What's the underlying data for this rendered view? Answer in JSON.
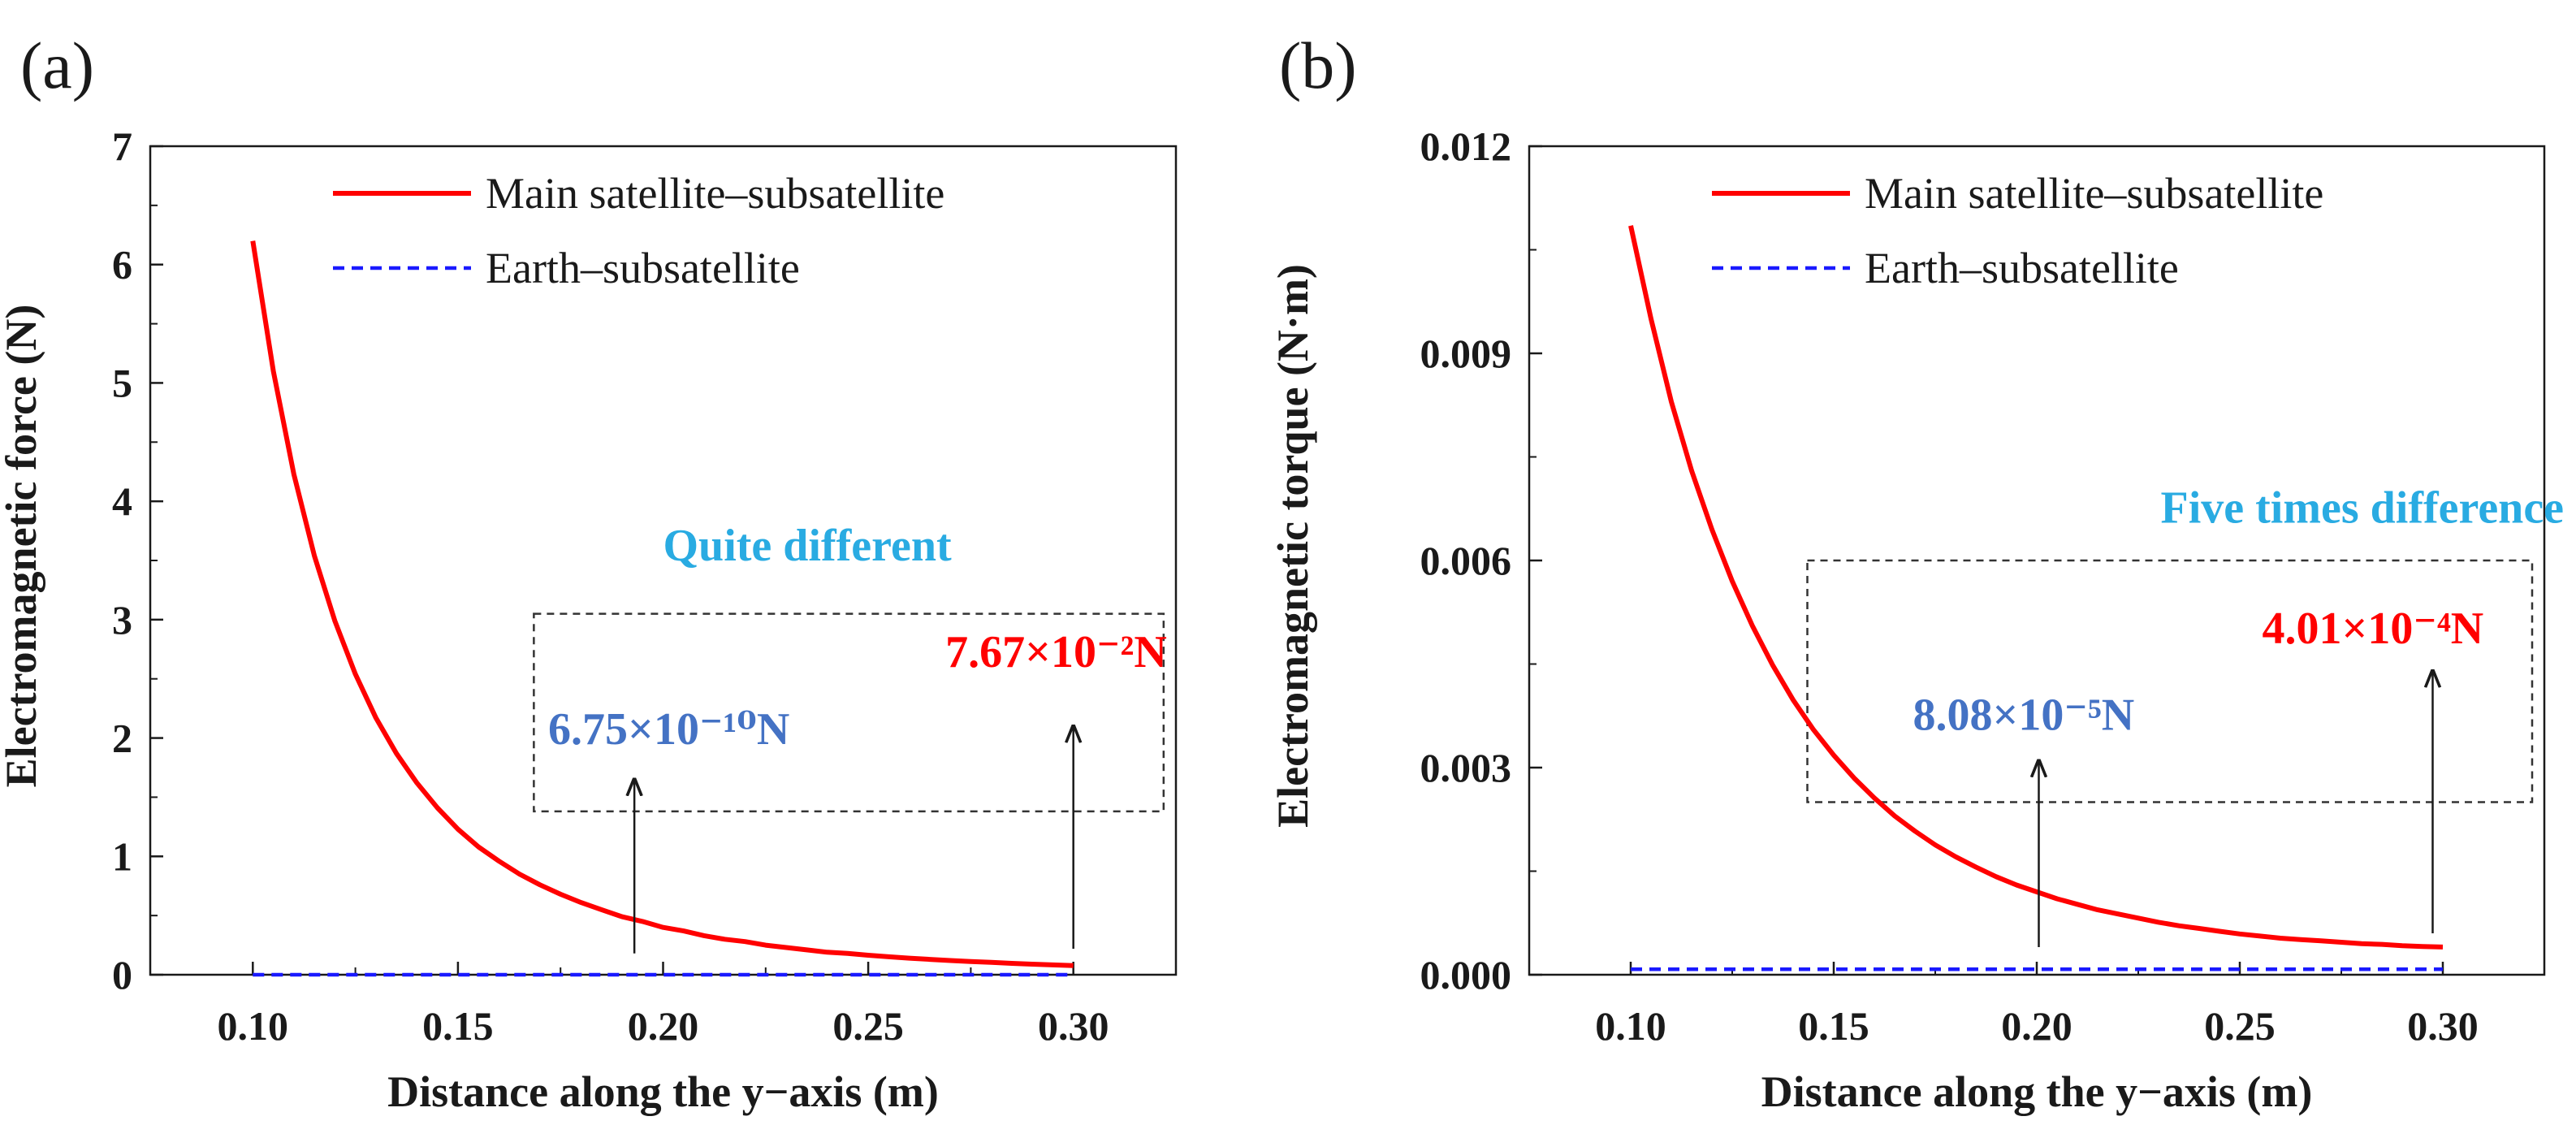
{
  "colors": {
    "main_line": "#ff0000",
    "earth_line": "#1a1aff",
    "anno_blue": "#4472c4",
    "anno_red": "#ff0000",
    "anno_title": "#29abe2",
    "axis": "#1a1a1a"
  },
  "chart_data": [
    {
      "type": "line",
      "panel_label": "(a)",
      "title": "",
      "xlabel": "Distance along the y−axis (m)",
      "ylabel": "Electromagnetic force (N)",
      "xlim": [
        0.075,
        0.325
      ],
      "ylim": [
        0,
        7
      ],
      "xticks": [
        0.1,
        0.15,
        0.2,
        0.25,
        0.3
      ],
      "xtick_labels": [
        "0.10",
        "0.15",
        "0.20",
        "0.25",
        "0.30"
      ],
      "yticks": [
        0,
        1,
        2,
        3,
        4,
        5,
        6,
        7
      ],
      "ytick_labels": [
        "0",
        "1",
        "2",
        "3",
        "4",
        "5",
        "6",
        "7"
      ],
      "grid": false,
      "legend_position": "top-right",
      "series": [
        {
          "name": "Main satellite–subsatellite",
          "style": "solid",
          "color": "#ff0000",
          "x": [
            0.1,
            0.105,
            0.11,
            0.115,
            0.12,
            0.125,
            0.13,
            0.135,
            0.14,
            0.145,
            0.15,
            0.155,
            0.16,
            0.165,
            0.17,
            0.175,
            0.18,
            0.185,
            0.19,
            0.195,
            0.2,
            0.205,
            0.21,
            0.215,
            0.22,
            0.225,
            0.23,
            0.235,
            0.24,
            0.245,
            0.25,
            0.255,
            0.26,
            0.265,
            0.27,
            0.275,
            0.28,
            0.285,
            0.29,
            0.295,
            0.3
          ],
          "y": [
            6.2,
            5.1,
            4.23,
            3.54,
            2.99,
            2.54,
            2.17,
            1.87,
            1.62,
            1.41,
            1.23,
            1.08,
            0.96,
            0.85,
            0.76,
            0.68,
            0.61,
            0.55,
            0.49,
            0.45,
            0.4,
            0.37,
            0.33,
            0.3,
            0.28,
            0.25,
            0.23,
            0.21,
            0.19,
            0.18,
            0.165,
            0.152,
            0.14,
            0.13,
            0.12,
            0.112,
            0.104,
            0.096,
            0.089,
            0.083,
            0.0767
          ]
        },
        {
          "name": "Earth–subsatellite",
          "style": "dashed",
          "color": "#1a1aff",
          "x": [
            0.1,
            0.3
          ],
          "y": [
            0.0,
            0.0
          ]
        }
      ],
      "box": {
        "x": [
          0.1685,
          0.322
        ],
        "y": [
          1.38,
          3.05
        ]
      },
      "box_title": "Quite different",
      "arrows": [
        {
          "x": 0.193,
          "y_from": 0.18,
          "y_to": 1.65,
          "label": "6.75×10⁻¹⁰N",
          "label_x": 0.172,
          "label_y": 1.95,
          "color": "#4472c4"
        },
        {
          "x": 0.3,
          "y_from": 0.22,
          "y_to": 2.1,
          "label": "7.67×10⁻²N",
          "label_x": 0.2688,
          "label_y": 2.6,
          "color": "#ff0000"
        }
      ],
      "box_title_pos": {
        "x": 0.2,
        "y": 3.5
      }
    },
    {
      "type": "line",
      "panel_label": "(b)",
      "title": "",
      "xlabel": "Distance along the y−axis (m)",
      "ylabel": "Electromagnetic torque (N·m)",
      "xlim": [
        0.075,
        0.325
      ],
      "ylim": [
        0,
        0.012
      ],
      "xticks": [
        0.1,
        0.15,
        0.2,
        0.25,
        0.3
      ],
      "xtick_labels": [
        "0.10",
        "0.15",
        "0.20",
        "0.25",
        "0.30"
      ],
      "yticks": [
        0,
        0.003,
        0.006,
        0.009,
        0.012
      ],
      "ytick_labels": [
        "0.000",
        "0.003",
        "0.006",
        "0.009",
        "0.012"
      ],
      "grid": false,
      "legend_position": "top-right",
      "series": [
        {
          "name": "Main satellite–subsatellite",
          "style": "solid",
          "color": "#ff0000",
          "x": [
            0.1,
            0.105,
            0.11,
            0.115,
            0.12,
            0.125,
            0.13,
            0.135,
            0.14,
            0.145,
            0.15,
            0.155,
            0.16,
            0.165,
            0.17,
            0.175,
            0.18,
            0.185,
            0.19,
            0.195,
            0.2,
            0.205,
            0.21,
            0.215,
            0.22,
            0.225,
            0.23,
            0.235,
            0.24,
            0.245,
            0.25,
            0.255,
            0.26,
            0.265,
            0.27,
            0.275,
            0.28,
            0.285,
            0.29,
            0.295,
            0.3
          ],
          "y": [
            0.01085,
            0.0095,
            0.0083,
            0.0073,
            0.00645,
            0.0057,
            0.00505,
            0.00448,
            0.00398,
            0.00355,
            0.00318,
            0.00285,
            0.00256,
            0.0023,
            0.00208,
            0.00188,
            0.00171,
            0.00156,
            0.00142,
            0.0013,
            0.0012,
            0.0011,
            0.00102,
            0.00094,
            0.00088,
            0.00082,
            0.00076,
            0.00071,
            0.00067,
            0.00063,
            0.00059,
            0.00056,
            0.00053,
            0.00051,
            0.00049,
            0.00047,
            0.00045,
            0.00044,
            0.00042,
            0.00041,
            0.000401
          ]
        },
        {
          "name": "Earth–subsatellite",
          "style": "dashed",
          "color": "#1a1aff",
          "x": [
            0.1,
            0.3
          ],
          "y": [
            8e-05,
            8e-05
          ]
        }
      ],
      "box": {
        "x": [
          0.1435,
          0.322
        ],
        "y": [
          0.0025,
          0.006
        ]
      },
      "box_title": "Five times difference",
      "arrows": [
        {
          "x": 0.2005,
          "y_from": 0.0004,
          "y_to": 0.0031,
          "label": "8.08×10⁻⁵N",
          "label_x": 0.1695,
          "label_y": 0.00355,
          "color": "#4472c4"
        },
        {
          "x": 0.2975,
          "y_from": 0.0006,
          "y_to": 0.0044,
          "label": "4.01×10⁻⁴N",
          "label_x": 0.2555,
          "label_y": 0.0048,
          "color": "#ff0000"
        }
      ],
      "box_title_pos": {
        "x": 0.2305,
        "y": 0.00655
      }
    }
  ]
}
